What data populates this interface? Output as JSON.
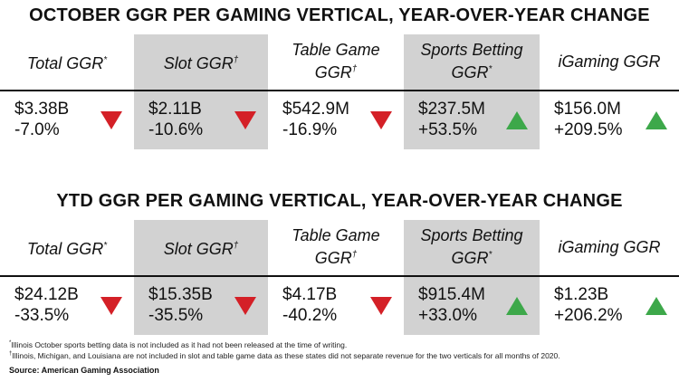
{
  "tables": [
    {
      "title": "OCTOBER GGR PER GAMING VERTICAL, YEAR-OVER-YEAR CHANGE",
      "headers": [
        {
          "text": "Total GGR",
          "mark": "*",
          "shaded": false
        },
        {
          "text": "Slot GGR",
          "mark": "†",
          "shaded": true
        },
        {
          "text": "Table Game GGR",
          "mark": "†",
          "shaded": false
        },
        {
          "text": "Sports Betting GGR",
          "mark": "*",
          "shaded": true
        },
        {
          "text": "iGaming GGR",
          "mark": null,
          "shaded": false
        }
      ],
      "cells": [
        {
          "value": "$3.38B",
          "change": "-7.0%",
          "direction": "down"
        },
        {
          "value": "$2.11B",
          "change": "-10.6%",
          "direction": "down"
        },
        {
          "value": "$542.9M",
          "change": "-16.9%",
          "direction": "down"
        },
        {
          "value": "$237.5M",
          "change": "+53.5%",
          "direction": "up"
        },
        {
          "value": "$156.0M",
          "change": "+209.5%",
          "direction": "up"
        }
      ]
    },
    {
      "title": "YTD GGR PER GAMING VERTICAL, YEAR-OVER-YEAR CHANGE",
      "headers": [
        {
          "text": "Total GGR",
          "mark": "*",
          "shaded": false
        },
        {
          "text": "Slot GGR",
          "mark": "†",
          "shaded": true
        },
        {
          "text": "Table Game GGR",
          "mark": "†",
          "shaded": false
        },
        {
          "text": "Sports Betting GGR",
          "mark": "*",
          "shaded": true
        },
        {
          "text": "iGaming GGR",
          "mark": null,
          "shaded": false
        }
      ],
      "cells": [
        {
          "value": "$24.12B",
          "change": "-33.5%",
          "direction": "down"
        },
        {
          "value": "$15.35B",
          "change": "-35.5%",
          "direction": "down"
        },
        {
          "value": "$4.17B",
          "change": "-40.2%",
          "direction": "down"
        },
        {
          "value": "$915.4M",
          "change": "+33.0%",
          "direction": "up"
        },
        {
          "value": "$1.23B",
          "change": "+206.2%",
          "direction": "up"
        }
      ]
    }
  ],
  "footnotes": [
    {
      "mark": "*",
      "text": "Illinois October sports betting data is not included as it had not been released at the time of writing."
    },
    {
      "mark": "†",
      "text": "Illinois, Michigan, and Louisiana are not included in slot and table game data as these states did not separate revenue for the two verticals for all months of 2020."
    }
  ],
  "source": "Source: American Gaming Association"
}
